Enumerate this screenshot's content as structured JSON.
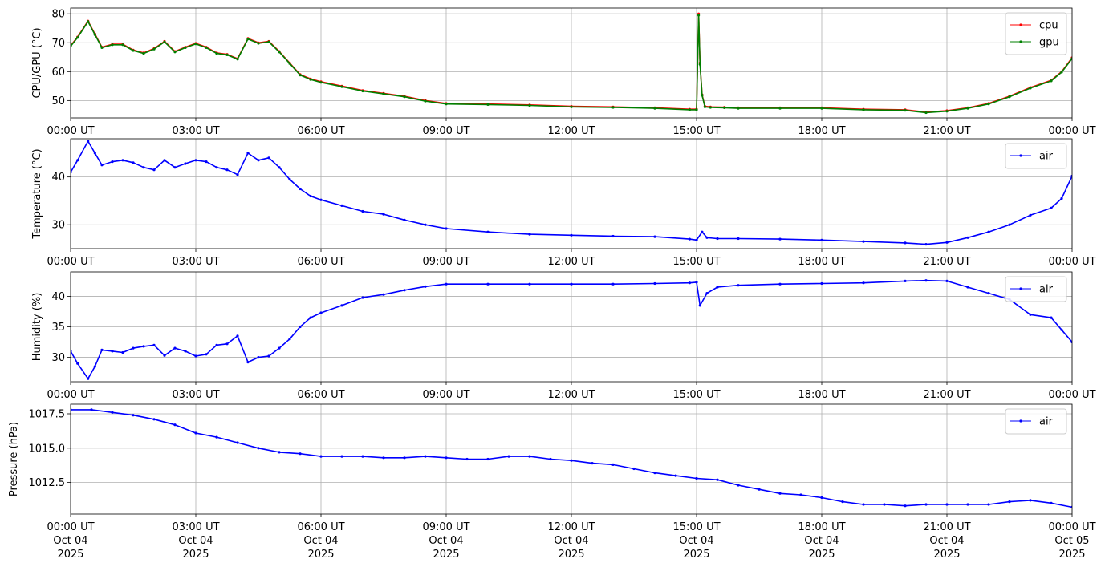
{
  "chart_data": [
    {
      "type": "line",
      "ylabel": "CPU/GPU (°C)",
      "xlim": [
        "00:00",
        "24:00"
      ],
      "ylim": [
        44,
        82
      ],
      "yticks": [
        50,
        60,
        70,
        80
      ],
      "xtick_labels": [
        "00:00 UT",
        "03:00 UT",
        "06:00 UT",
        "09:00 UT",
        "12:00 UT",
        "15:00 UT",
        "18:00 UT",
        "21:00 UT",
        "00:00 UT"
      ],
      "grid": true,
      "legend_position": "top-right",
      "series": [
        {
          "name": "cpu",
          "color": "#ff0000",
          "x": [
            "00:00",
            "00:10",
            "00:25",
            "00:35",
            "00:45",
            "01:00",
            "01:15",
            "01:30",
            "01:45",
            "02:00",
            "02:15",
            "02:30",
            "02:45",
            "03:00",
            "03:15",
            "03:30",
            "03:45",
            "04:00",
            "04:15",
            "04:30",
            "04:45",
            "05:00",
            "05:15",
            "05:30",
            "05:45",
            "06:00",
            "06:30",
            "07:00",
            "07:30",
            "08:00",
            "08:30",
            "09:00",
            "10:00",
            "11:00",
            "12:00",
            "13:00",
            "14:00",
            "14:50",
            "15:00",
            "15:03",
            "15:05",
            "15:08",
            "15:12",
            "15:20",
            "15:40",
            "16:00",
            "17:00",
            "18:00",
            "19:00",
            "20:00",
            "20:30",
            "21:00",
            "21:30",
            "22:00",
            "22:30",
            "23:00",
            "23:30",
            "23:45",
            "24:00"
          ],
          "y": [
            69,
            72,
            77.5,
            73,
            68.5,
            69.5,
            69.5,
            67.5,
            66.5,
            68,
            70.5,
            67,
            68.5,
            69.8,
            68.5,
            66.5,
            66,
            64.5,
            71.5,
            70,
            70.5,
            67,
            63,
            59,
            57.5,
            56.5,
            55,
            53.5,
            52.5,
            51.5,
            50,
            49,
            48.8,
            48.5,
            48,
            47.8,
            47.5,
            47,
            47,
            80,
            63,
            52,
            48,
            47.8,
            47.7,
            47.5,
            47.5,
            47.5,
            47,
            46.8,
            46,
            46.5,
            47.5,
            49,
            51.5,
            54.5,
            57,
            60,
            64.8
          ]
        },
        {
          "name": "gpu",
          "color": "#008000",
          "x": [
            "00:00",
            "00:10",
            "00:25",
            "00:35",
            "00:45",
            "01:00",
            "01:15",
            "01:30",
            "01:45",
            "02:00",
            "02:15",
            "02:30",
            "02:45",
            "03:00",
            "03:15",
            "03:30",
            "03:45",
            "04:00",
            "04:15",
            "04:30",
            "04:45",
            "05:00",
            "05:15",
            "05:30",
            "05:45",
            "06:00",
            "06:30",
            "07:00",
            "07:30",
            "08:00",
            "08:30",
            "09:00",
            "10:00",
            "11:00",
            "12:00",
            "13:00",
            "14:00",
            "14:50",
            "15:00",
            "15:03",
            "15:05",
            "15:08",
            "15:12",
            "15:20",
            "15:40",
            "16:00",
            "17:00",
            "18:00",
            "19:00",
            "20:00",
            "20:30",
            "21:00",
            "21:30",
            "22:00",
            "22:30",
            "23:00",
            "23:30",
            "23:45",
            "24:00"
          ],
          "y": [
            68.8,
            71.8,
            77.3,
            72.8,
            68.3,
            69.3,
            69.3,
            67.3,
            66.3,
            67.8,
            70.3,
            66.8,
            68.3,
            69.6,
            68.3,
            66.3,
            65.8,
            64.3,
            71.3,
            69.8,
            70.3,
            66.8,
            62.8,
            58.8,
            57.3,
            56.3,
            54.8,
            53.3,
            52.3,
            51.3,
            49.8,
            48.8,
            48.6,
            48.3,
            47.8,
            47.6,
            47.3,
            46.8,
            46.8,
            79.5,
            62.5,
            51.8,
            47.8,
            47.6,
            47.5,
            47.3,
            47.3,
            47.3,
            46.8,
            46.6,
            45.8,
            46.3,
            47.3,
            48.8,
            51.3,
            54.3,
            56.8,
            59.8,
            64.5
          ]
        }
      ]
    },
    {
      "type": "line",
      "ylabel": "Temperature (°C)",
      "xlim": [
        "00:00",
        "24:00"
      ],
      "ylim": [
        25,
        48
      ],
      "yticks": [
        30,
        40
      ],
      "xtick_labels": [
        "00:00 UT",
        "03:00 UT",
        "06:00 UT",
        "09:00 UT",
        "12:00 UT",
        "15:00 UT",
        "18:00 UT",
        "21:00 UT",
        "00:00 UT"
      ],
      "grid": true,
      "legend_position": "top-right",
      "series": [
        {
          "name": "air",
          "color": "#0000ff",
          "x": [
            "00:00",
            "00:10",
            "00:25",
            "00:35",
            "00:45",
            "01:00",
            "01:15",
            "01:30",
            "01:45",
            "02:00",
            "02:15",
            "02:30",
            "02:45",
            "03:00",
            "03:15",
            "03:30",
            "03:45",
            "04:00",
            "04:15",
            "04:30",
            "04:45",
            "05:00",
            "05:15",
            "05:30",
            "05:45",
            "06:00",
            "06:30",
            "07:00",
            "07:30",
            "08:00",
            "08:30",
            "09:00",
            "10:00",
            "11:00",
            "12:00",
            "13:00",
            "14:00",
            "14:50",
            "15:00",
            "15:08",
            "15:15",
            "15:30",
            "16:00",
            "17:00",
            "18:00",
            "19:00",
            "20:00",
            "20:30",
            "21:00",
            "21:30",
            "22:00",
            "22:30",
            "23:00",
            "23:30",
            "23:45",
            "24:00"
          ],
          "y": [
            41,
            43.5,
            47.5,
            45,
            42.5,
            43.2,
            43.5,
            43,
            42,
            41.5,
            43.5,
            42,
            42.8,
            43.5,
            43.2,
            42,
            41.5,
            40.5,
            45,
            43.5,
            44,
            42,
            39.5,
            37.5,
            36,
            35.2,
            34,
            32.8,
            32.2,
            31,
            30,
            29.2,
            28.5,
            28,
            27.8,
            27.6,
            27.5,
            27,
            26.8,
            28.5,
            27.3,
            27.1,
            27.1,
            27,
            26.8,
            26.5,
            26.2,
            25.9,
            26.3,
            27.3,
            28.5,
            30,
            32,
            33.5,
            35.5,
            40.2
          ]
        }
      ]
    },
    {
      "type": "line",
      "ylabel": "Humidity (%)",
      "xlim": [
        "00:00",
        "24:00"
      ],
      "ylim": [
        26,
        44
      ],
      "yticks": [
        30,
        35,
        40
      ],
      "xtick_labels": [
        "00:00 UT",
        "03:00 UT",
        "06:00 UT",
        "09:00 UT",
        "12:00 UT",
        "15:00 UT",
        "18:00 UT",
        "21:00 UT",
        "00:00 UT"
      ],
      "grid": true,
      "legend_position": "top-right",
      "series": [
        {
          "name": "air",
          "color": "#0000ff",
          "x": [
            "00:00",
            "00:10",
            "00:25",
            "00:35",
            "00:45",
            "01:00",
            "01:15",
            "01:30",
            "01:45",
            "02:00",
            "02:15",
            "02:30",
            "02:45",
            "03:00",
            "03:15",
            "03:30",
            "03:45",
            "04:00",
            "04:15",
            "04:30",
            "04:45",
            "05:00",
            "05:15",
            "05:30",
            "05:45",
            "06:00",
            "06:30",
            "07:00",
            "07:30",
            "08:00",
            "08:30",
            "09:00",
            "10:00",
            "11:00",
            "12:00",
            "13:00",
            "14:00",
            "14:50",
            "15:00",
            "15:05",
            "15:15",
            "15:30",
            "16:00",
            "17:00",
            "18:00",
            "19:00",
            "20:00",
            "20:30",
            "21:00",
            "21:30",
            "22:00",
            "22:30",
            "23:00",
            "23:30",
            "23:45",
            "24:00"
          ],
          "y": [
            31,
            29,
            26.5,
            28.5,
            31.2,
            31,
            30.8,
            31.5,
            31.8,
            32,
            30.3,
            31.5,
            31,
            30.2,
            30.5,
            32,
            32.2,
            33.5,
            29.2,
            30,
            30.2,
            31.5,
            33,
            35,
            36.5,
            37.3,
            38.5,
            39.8,
            40.3,
            41,
            41.6,
            42,
            42,
            42,
            42,
            42,
            42.1,
            42.2,
            42.3,
            38.5,
            40.5,
            41.5,
            41.8,
            42,
            42.1,
            42.2,
            42.5,
            42.6,
            42.5,
            41.5,
            40.5,
            39.5,
            37,
            36.5,
            34.5,
            32.5
          ]
        }
      ]
    },
    {
      "type": "line",
      "ylabel": "Pressure (hPa)",
      "xlim": [
        "00:00",
        "24:00"
      ],
      "ylim": [
        1010.2,
        1018.2
      ],
      "yticks": [
        1012.5,
        1015.0,
        1017.5
      ],
      "ytick_labels": [
        "1012.5",
        "1015.0",
        "1017.5"
      ],
      "xtick_labels": [
        [
          "00:00 UT",
          "Oct 04",
          "2025"
        ],
        [
          "03:00 UT",
          "Oct 04",
          "2025"
        ],
        [
          "06:00 UT",
          "Oct 04",
          "2025"
        ],
        [
          "09:00 UT",
          "Oct 04",
          "2025"
        ],
        [
          "12:00 UT",
          "Oct 04",
          "2025"
        ],
        [
          "15:00 UT",
          "Oct 04",
          "2025"
        ],
        [
          "18:00 UT",
          "Oct 04",
          "2025"
        ],
        [
          "21:00 UT",
          "Oct 04",
          "2025"
        ],
        [
          "00:00 UT",
          "Oct 05",
          "2025"
        ]
      ],
      "grid": true,
      "legend_position": "top-right",
      "series": [
        {
          "name": "air",
          "color": "#0000ff",
          "x": [
            "00:00",
            "00:30",
            "01:00",
            "01:30",
            "02:00",
            "02:30",
            "03:00",
            "03:30",
            "04:00",
            "04:30",
            "05:00",
            "05:30",
            "06:00",
            "06:30",
            "07:00",
            "07:30",
            "08:00",
            "08:30",
            "09:00",
            "09:30",
            "10:00",
            "10:30",
            "11:00",
            "11:30",
            "12:00",
            "12:30",
            "13:00",
            "13:30",
            "14:00",
            "14:30",
            "15:00",
            "15:30",
            "16:00",
            "16:30",
            "17:00",
            "17:30",
            "18:00",
            "18:30",
            "19:00",
            "19:30",
            "20:00",
            "20:30",
            "21:00",
            "21:30",
            "22:00",
            "22:30",
            "23:00",
            "23:30",
            "24:00"
          ],
          "y": [
            1017.8,
            1017.8,
            1017.6,
            1017.4,
            1017.1,
            1016.7,
            1016.1,
            1015.8,
            1015.4,
            1015.0,
            1014.7,
            1014.6,
            1014.4,
            1014.4,
            1014.4,
            1014.3,
            1014.3,
            1014.4,
            1014.3,
            1014.2,
            1014.2,
            1014.4,
            1014.4,
            1014.2,
            1014.1,
            1013.9,
            1013.8,
            1013.5,
            1013.2,
            1013.0,
            1012.8,
            1012.7,
            1012.3,
            1012.0,
            1011.7,
            1011.6,
            1011.4,
            1011.1,
            1010.9,
            1010.9,
            1010.8,
            1010.9,
            1010.9,
            1010.9,
            1010.9,
            1011.1,
            1011.2,
            1011.0,
            1010.7
          ]
        }
      ]
    }
  ]
}
